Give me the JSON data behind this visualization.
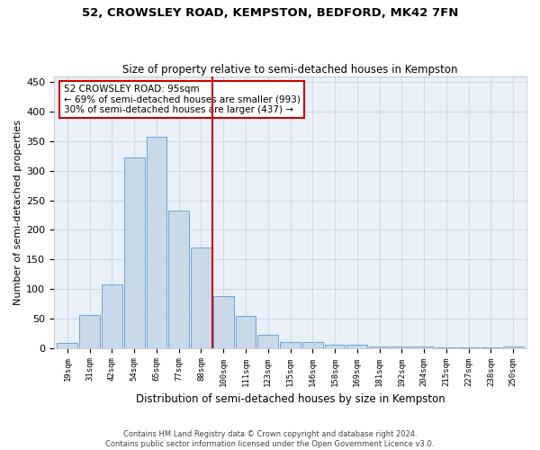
{
  "title": "52, CROWSLEY ROAD, KEMPSTON, BEDFORD, MK42 7FN",
  "subtitle": "Size of property relative to semi-detached houses in Kempston",
  "xlabel": "Distribution of semi-detached houses by size in Kempston",
  "ylabel": "Number of semi-detached properties",
  "footer1": "Contains HM Land Registry data © Crown copyright and database right 2024.",
  "footer2": "Contains public sector information licensed under the Open Government Licence v3.0.",
  "annotation_title": "52 CROWSLEY ROAD: 95sqm",
  "annotation_line1": "← 69% of semi-detached houses are smaller (993)",
  "annotation_line2": "30% of semi-detached houses are larger (437) →",
  "bar_labels": [
    "19sqm",
    "31sqm",
    "42sqm",
    "54sqm",
    "65sqm",
    "77sqm",
    "88sqm",
    "100sqm",
    "111sqm",
    "123sqm",
    "135sqm",
    "146sqm",
    "158sqm",
    "169sqm",
    "181sqm",
    "192sqm",
    "204sqm",
    "215sqm",
    "227sqm",
    "238sqm",
    "250sqm"
  ],
  "bar_values": [
    8,
    56,
    108,
    322,
    358,
    232,
    170,
    88,
    55,
    22,
    10,
    10,
    5,
    5,
    3,
    2,
    2,
    1,
    1,
    1,
    2
  ],
  "bar_color": "#c9d9e8",
  "bar_edge_color": "#5b9bd5",
  "line_color": "#cc0000",
  "grid_color": "#d0d8e8",
  "bg_color": "#eaf0f8",
  "annotation_box_color": "#ffffff",
  "annotation_box_edge": "#cc0000",
  "ylim": [
    0,
    460
  ],
  "yticks": [
    0,
    50,
    100,
    150,
    200,
    250,
    300,
    350,
    400,
    450
  ],
  "line_x_index": 6.5
}
